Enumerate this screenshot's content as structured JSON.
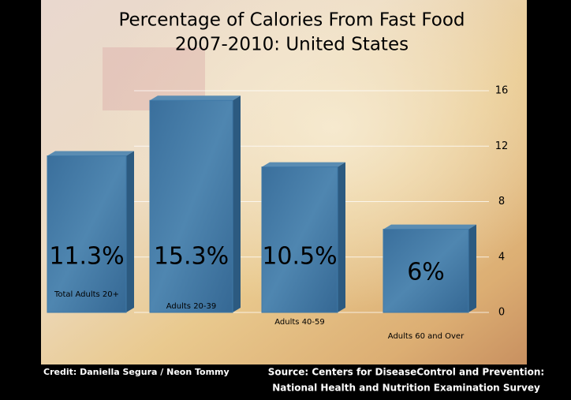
{
  "chart_data": {
    "type": "bar",
    "title": "Percentage of Calories From Fast Food",
    "subtitle": "2007-2010: United States",
    "categories": [
      "Total Adults 20+",
      "Adults 20-39",
      "Adults 40-59",
      "Adults 60 and Over"
    ],
    "values": [
      11.3,
      15.3,
      10.5,
      6
    ],
    "value_labels": [
      "11.3%",
      "15.3%",
      "10.5%",
      "6%"
    ],
    "color": "#3f79a8",
    "ylim": [
      0,
      16
    ],
    "yticks": [
      0,
      4,
      8,
      12,
      16
    ],
    "grid": true,
    "credit": "Credit: Daniella Segura / Neon Tommy",
    "source": [
      "Source: Centers for DiseaseControl and Prevention:",
      "National Health and Nutrition Examination Survey"
    ]
  }
}
